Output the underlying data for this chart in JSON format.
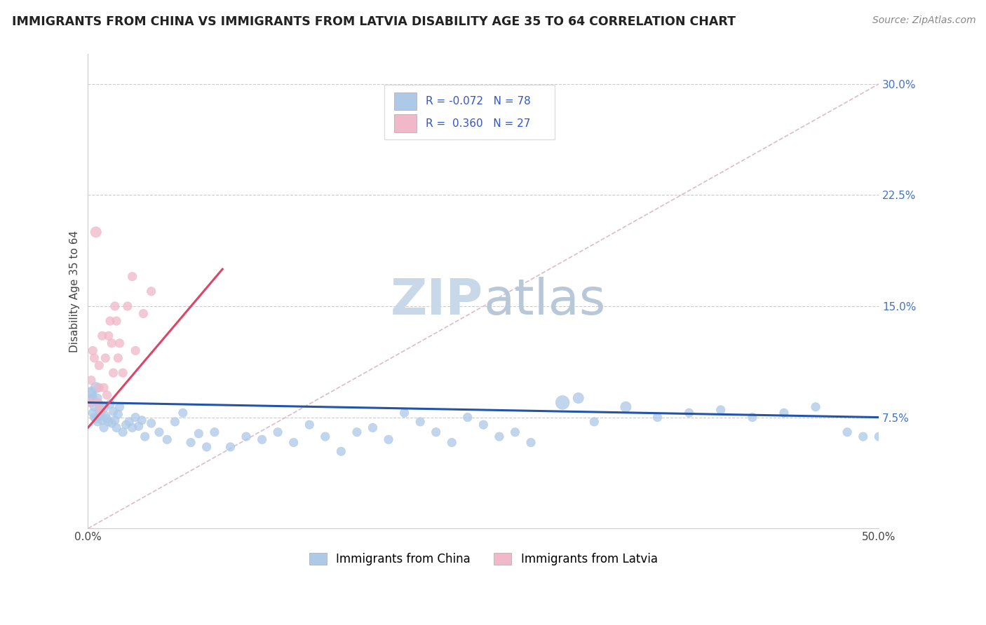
{
  "title": "IMMIGRANTS FROM CHINA VS IMMIGRANTS FROM LATVIA DISABILITY AGE 35 TO 64 CORRELATION CHART",
  "source": "Source: ZipAtlas.com",
  "ylabel": "Disability Age 35 to 64",
  "xlim": [
    0.0,
    0.5
  ],
  "ylim": [
    0.0,
    0.32
  ],
  "ytick_positions": [
    0.075,
    0.15,
    0.225,
    0.3
  ],
  "ytick_labels": [
    "7.5%",
    "15.0%",
    "22.5%",
    "30.0%"
  ],
  "china_color": "#adc9e8",
  "china_color_line": "#2255aa",
  "latvia_color": "#f0b8c8",
  "latvia_color_line": "#dd4466",
  "diag_color": "#ddbbcc",
  "watermark_color": "#d0dce8",
  "legend_r_china": "-0.072",
  "legend_n_china": "78",
  "legend_r_latvia": "0.360",
  "legend_n_latvia": "27",
  "china_x": [
    0.001,
    0.002,
    0.002,
    0.003,
    0.003,
    0.004,
    0.004,
    0.005,
    0.005,
    0.006,
    0.006,
    0.007,
    0.007,
    0.008,
    0.008,
    0.009,
    0.01,
    0.01,
    0.011,
    0.012,
    0.013,
    0.014,
    0.015,
    0.016,
    0.017,
    0.018,
    0.019,
    0.02,
    0.022,
    0.024,
    0.026,
    0.028,
    0.03,
    0.032,
    0.034,
    0.036,
    0.04,
    0.045,
    0.05,
    0.055,
    0.06,
    0.065,
    0.07,
    0.075,
    0.08,
    0.09,
    0.1,
    0.11,
    0.12,
    0.13,
    0.14,
    0.15,
    0.16,
    0.17,
    0.18,
    0.19,
    0.2,
    0.21,
    0.22,
    0.23,
    0.24,
    0.25,
    0.26,
    0.27,
    0.28,
    0.3,
    0.31,
    0.32,
    0.34,
    0.36,
    0.38,
    0.4,
    0.42,
    0.44,
    0.46,
    0.48,
    0.49,
    0.5
  ],
  "china_y": [
    0.09,
    0.085,
    0.092,
    0.088,
    0.078,
    0.082,
    0.075,
    0.095,
    0.074,
    0.088,
    0.072,
    0.08,
    0.084,
    0.076,
    0.079,
    0.073,
    0.082,
    0.068,
    0.076,
    0.074,
    0.072,
    0.084,
    0.071,
    0.079,
    0.073,
    0.068,
    0.077,
    0.082,
    0.065,
    0.07,
    0.072,
    0.068,
    0.075,
    0.069,
    0.073,
    0.062,
    0.071,
    0.065,
    0.06,
    0.072,
    0.078,
    0.058,
    0.064,
    0.055,
    0.065,
    0.055,
    0.062,
    0.06,
    0.065,
    0.058,
    0.07,
    0.062,
    0.052,
    0.065,
    0.068,
    0.06,
    0.078,
    0.072,
    0.065,
    0.058,
    0.075,
    0.07,
    0.062,
    0.065,
    0.058,
    0.085,
    0.088,
    0.072,
    0.082,
    0.075,
    0.078,
    0.08,
    0.075,
    0.078,
    0.082,
    0.065,
    0.062,
    0.062
  ],
  "china_sizes": [
    200,
    80,
    120,
    80,
    80,
    80,
    80,
    120,
    80,
    80,
    80,
    80,
    80,
    80,
    80,
    80,
    120,
    80,
    80,
    80,
    80,
    80,
    80,
    80,
    80,
    80,
    80,
    80,
    80,
    80,
    80,
    80,
    80,
    80,
    80,
    80,
    80,
    80,
    80,
    80,
    80,
    80,
    80,
    80,
    80,
    80,
    80,
    80,
    80,
    80,
    80,
    80,
    80,
    80,
    80,
    80,
    80,
    80,
    80,
    80,
    80,
    80,
    80,
    80,
    80,
    200,
    120,
    80,
    120,
    80,
    80,
    80,
    80,
    80,
    80,
    80,
    80,
    80
  ],
  "latvia_x": [
    0.001,
    0.002,
    0.003,
    0.004,
    0.005,
    0.006,
    0.007,
    0.007,
    0.008,
    0.009,
    0.01,
    0.011,
    0.012,
    0.013,
    0.014,
    0.015,
    0.016,
    0.017,
    0.018,
    0.019,
    0.02,
    0.022,
    0.025,
    0.028,
    0.03,
    0.035,
    0.04
  ],
  "latvia_y": [
    0.085,
    0.1,
    0.12,
    0.115,
    0.2,
    0.085,
    0.11,
    0.095,
    0.08,
    0.13,
    0.095,
    0.115,
    0.09,
    0.13,
    0.14,
    0.125,
    0.105,
    0.15,
    0.14,
    0.115,
    0.125,
    0.105,
    0.15,
    0.17,
    0.12,
    0.145,
    0.16
  ],
  "latvia_sizes": [
    80,
    80,
    80,
    80,
    120,
    80,
    80,
    80,
    80,
    80,
    80,
    80,
    80,
    80,
    80,
    80,
    80,
    80,
    80,
    80,
    80,
    80,
    80,
    80,
    80,
    80,
    80
  ],
  "china_line_x": [
    0.0,
    0.5
  ],
  "china_line_y": [
    0.085,
    0.075
  ],
  "latvia_line_x": [
    0.0,
    0.085
  ],
  "latvia_line_y": [
    0.068,
    0.175
  ],
  "diag_line_x": [
    0.0,
    0.5
  ],
  "diag_line_y": [
    0.0,
    0.3
  ]
}
